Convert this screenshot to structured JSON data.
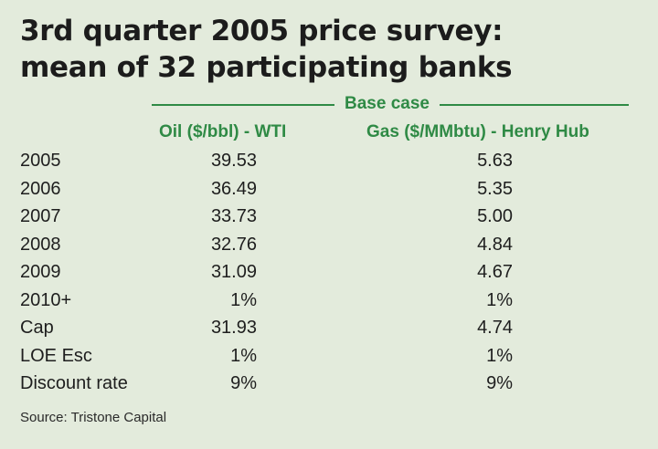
{
  "title": {
    "line1": "3rd quarter 2005 price survey:",
    "line2": "mean of 32 participating banks"
  },
  "base_case_label": "Base case",
  "columns": {
    "oil": "Oil ($/bbl) - WTI",
    "gas": "Gas ($/MMbtu) - Henry Hub"
  },
  "rows": [
    {
      "label": "2005",
      "oil": "39.53",
      "gas": "5.63"
    },
    {
      "label": "2006",
      "oil": "36.49",
      "gas": "5.35"
    },
    {
      "label": "2007",
      "oil": "33.73",
      "gas": "5.00"
    },
    {
      "label": "2008",
      "oil": "32.76",
      "gas": "4.84"
    },
    {
      "label": "2009",
      "oil": "31.09",
      "gas": "4.67"
    },
    {
      "label": "2010+",
      "oil": "1%",
      "gas": "1%"
    },
    {
      "label": "Cap",
      "oil": "31.93",
      "gas": "4.74"
    },
    {
      "label": "LOE Esc",
      "oil": "1%",
      "gas": "1%"
    },
    {
      "label": "Discount rate",
      "oil": "9%",
      "gas": "9%"
    }
  ],
  "source": "Source: Tristone Capital",
  "colors": {
    "background": "#e3ebdc",
    "accent": "#2f8a45",
    "text": "#1e1e1e"
  }
}
